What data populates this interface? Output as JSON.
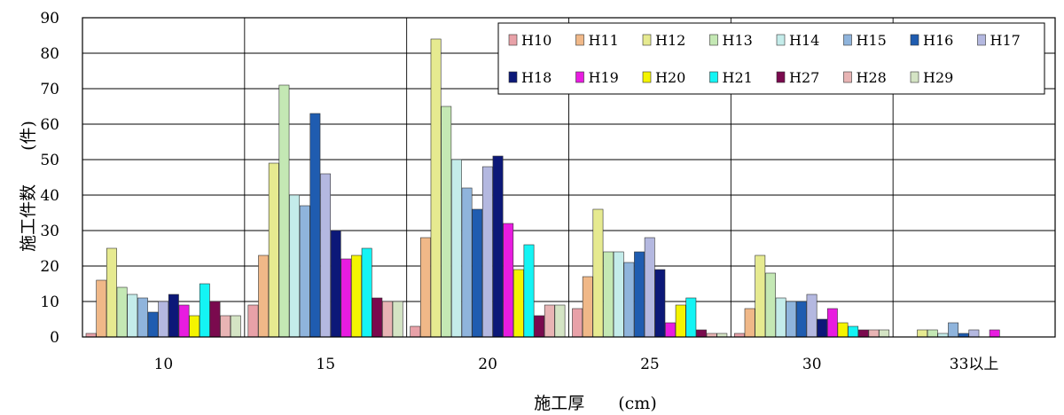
{
  "chart_data": {
    "type": "bar",
    "title": "",
    "xlabel": "施工厚　　(cm)",
    "ylabel": "施工件数　　(件)",
    "ylim": [
      0,
      90
    ],
    "yticks": [
      0,
      10,
      20,
      30,
      40,
      50,
      60,
      70,
      80,
      90
    ],
    "grid": "vertical-and-horizontal",
    "legend_position": "top-right",
    "categories": [
      "10",
      "15",
      "20",
      "25",
      "30",
      "33以上"
    ],
    "series": [
      {
        "name": "H10",
        "color": "#e8a1a8",
        "values": [
          1,
          9,
          3,
          8,
          1,
          0
        ]
      },
      {
        "name": "H11",
        "color": "#f0b888",
        "values": [
          16,
          23,
          28,
          17,
          8,
          0
        ]
      },
      {
        "name": "H12",
        "color": "#e6ea90",
        "values": [
          25,
          49,
          84,
          36,
          23,
          2
        ]
      },
      {
        "name": "H13",
        "color": "#c4e8b4",
        "values": [
          14,
          71,
          65,
          24,
          18,
          2
        ]
      },
      {
        "name": "H14",
        "color": "#c4ecea",
        "values": [
          12,
          40,
          50,
          24,
          11,
          1
        ]
      },
      {
        "name": "H15",
        "color": "#8fb4dc",
        "values": [
          11,
          37,
          42,
          21,
          10,
          4
        ]
      },
      {
        "name": "H16",
        "color": "#1f5cb0",
        "values": [
          7,
          63,
          36,
          24,
          10,
          1
        ]
      },
      {
        "name": "H17",
        "color": "#b4b8e0",
        "values": [
          10,
          46,
          48,
          28,
          12,
          2
        ]
      },
      {
        "name": "H18",
        "color": "#0c1878",
        "values": [
          12,
          30,
          51,
          19,
          5,
          0
        ]
      },
      {
        "name": "H19",
        "color": "#e81ce0",
        "values": [
          9,
          22,
          32,
          4,
          8,
          2
        ]
      },
      {
        "name": "H20",
        "color": "#f4f400",
        "values": [
          6,
          23,
          19,
          9,
          4,
          0
        ]
      },
      {
        "name": "H21",
        "color": "#14f4f4",
        "values": [
          15,
          25,
          26,
          11,
          3,
          0
        ]
      },
      {
        "name": "H27",
        "color": "#7a0a4e",
        "values": [
          10,
          11,
          6,
          2,
          2,
          0
        ]
      },
      {
        "name": "H28",
        "color": "#e8b4b4",
        "values": [
          6,
          10,
          9,
          1,
          2,
          0
        ]
      },
      {
        "name": "H29",
        "color": "#d4e4c4",
        "values": [
          6,
          10,
          9,
          1,
          2,
          0
        ]
      }
    ]
  }
}
